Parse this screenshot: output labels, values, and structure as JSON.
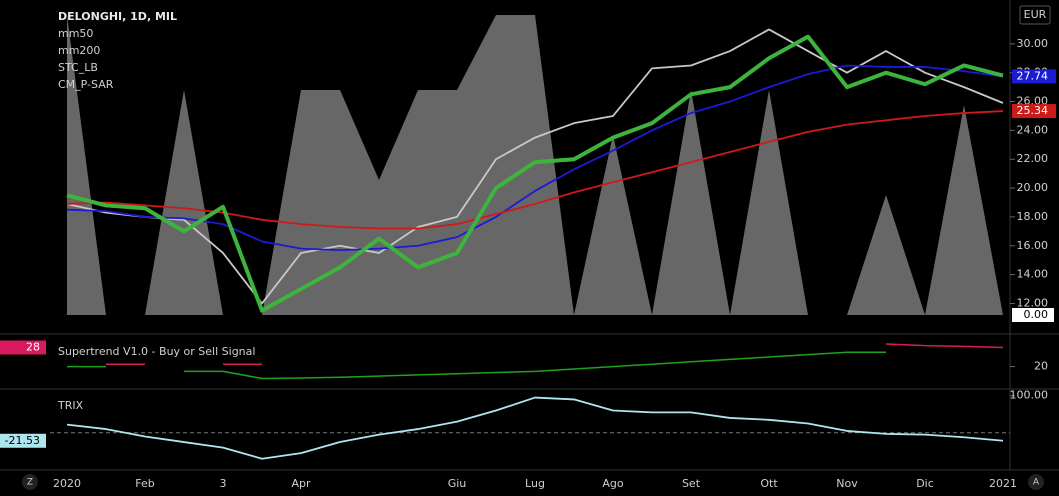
{
  "chart_data": [
    {
      "type": "line",
      "title": "DELONGHI, 1D, MIL",
      "currency": "EUR",
      "ylim": [
        11.2,
        32.0
      ],
      "yticks": [
        {
          "value": 12,
          "label": "12.00"
        },
        {
          "value": 14,
          "label": "14.00"
        },
        {
          "value": 16,
          "label": "16.00"
        },
        {
          "value": 18,
          "label": "18.00"
        },
        {
          "value": 20,
          "label": "20.00"
        },
        {
          "value": 22,
          "label": "22.00"
        },
        {
          "value": 24,
          "label": "24.00"
        },
        {
          "value": 26,
          "label": "26.00"
        },
        {
          "value": 28,
          "label": "28.00"
        },
        {
          "value": 30,
          "label": "30.00"
        }
      ],
      "y2lim": [
        0,
        100
      ],
      "y2ticks": [
        {
          "value": 0,
          "label": "0.00"
        }
      ],
      "series": [
        {
          "color": "#c8c8c8",
          "values": [
            18.9,
            18.3,
            18.0,
            17.8,
            15.5,
            12.0,
            15.5,
            16.0,
            15.5,
            17.3,
            18.0,
            22.0,
            23.5,
            24.5,
            25.0,
            28.3,
            28.5,
            29.5,
            31.0,
            29.5,
            28.0,
            29.5,
            28.0,
            27.0,
            25.9
          ]
        },
        {
          "name": "mm50",
          "color": "#1b1bd6",
          "values": [
            18.5,
            18.4,
            18.0,
            17.9,
            17.5,
            16.3,
            15.8,
            15.7,
            15.8,
            16.0,
            16.6,
            18.0,
            19.8,
            21.3,
            22.6,
            24.0,
            25.2,
            26.0,
            27.0,
            27.9,
            28.5,
            28.4,
            28.4,
            28.1,
            27.74
          ]
        },
        {
          "name": "mm200",
          "color": "#d01919",
          "values": [
            18.9,
            19.0,
            18.8,
            18.6,
            18.3,
            17.8,
            17.5,
            17.3,
            17.2,
            17.2,
            17.5,
            18.2,
            18.9,
            19.7,
            20.4,
            21.1,
            21.8,
            22.5,
            23.2,
            23.9,
            24.4,
            24.7,
            25.0,
            25.2,
            25.34
          ]
        },
        {
          "name": "STC_LB",
          "color": "#8a8a8a",
          "axis": "y2",
          "values": [
            100,
            0,
            0,
            75,
            0,
            0,
            75,
            75,
            45,
            75,
            75,
            100,
            100,
            0,
            60,
            0,
            75,
            0,
            75,
            0,
            0,
            40,
            0,
            70,
            0
          ]
        },
        {
          "name": "CM_P-SAR",
          "color": "#3db53d",
          "values": [
            19.5,
            18.8,
            18.6,
            17.0,
            18.7,
            11.5,
            13.0,
            14.5,
            16.5,
            14.5,
            15.5,
            20.0,
            21.8,
            22.0,
            23.5,
            24.5,
            26.5,
            27.0,
            29.0,
            30.5,
            27.0,
            28.0,
            27.2,
            28.5,
            27.8
          ]
        }
      ]
    },
    {
      "type": "line",
      "title": "Supertrend V1.0 - Buy or Sell Signal",
      "ylim": [
        11,
        32
      ],
      "yticks": [
        20
      ],
      "series": [
        {
          "color": "#1fa31f",
          "values": [
            20,
            20,
            null,
            18,
            18,
            15,
            15.2,
            15.5,
            16,
            16.5,
            17,
            17.5,
            18,
            19,
            20,
            21,
            22,
            23,
            24,
            25,
            26,
            26,
            null,
            null,
            null
          ]
        },
        {
          "color": "#d81b60",
          "values": [
            null,
            21,
            21,
            null,
            21,
            21,
            null,
            null,
            null,
            null,
            null,
            null,
            null,
            null,
            null,
            null,
            null,
            null,
            null,
            null,
            null,
            29.5,
            28.8,
            28.5,
            28
          ]
        }
      ]
    },
    {
      "type": "line",
      "title": "TRIX",
      "ylim": [
        -95,
        110
      ],
      "yticks": [
        {
          "value": 100,
          "label": "100.00"
        }
      ],
      "categories": [
        "2020",
        null,
        "Feb",
        null,
        "3",
        null,
        "Apr",
        null,
        null,
        null,
        "Giu",
        null,
        "Lug",
        null,
        "Ago",
        null,
        "Set",
        null,
        "Ott",
        null,
        "Nov",
        null,
        "Dic",
        null,
        "2021"
      ],
      "series": [
        {
          "color": "#aee6f0",
          "values": [
            22,
            10,
            -10,
            -25,
            -40,
            -70,
            -55,
            -25,
            -5,
            10,
            30,
            60,
            95,
            90,
            60,
            55,
            55,
            40,
            35,
            25,
            5,
            -3,
            -5,
            -12,
            -21.53
          ]
        }
      ]
    }
  ],
  "ui": {
    "left_button": "Z",
    "right_button": "A"
  }
}
